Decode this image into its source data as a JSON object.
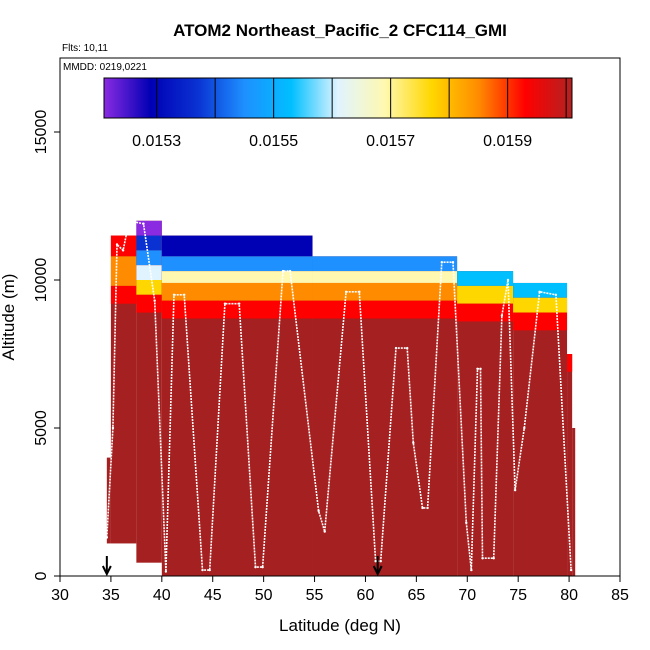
{
  "chart_data": {
    "type": "heatmap",
    "title": "ATOM2 Northeast_Pacific_2 CFC114_GMI",
    "flights_label": "Flts: 10,11",
    "mmdd_label": "MMDD: 0219,0221",
    "xlabel": "Latitude (deg N)",
    "ylabel": "Altitude (m)",
    "xlim": [
      30,
      85
    ],
    "ylim": [
      0,
      17500
    ],
    "x_ticks": [
      30,
      35,
      40,
      45,
      50,
      55,
      60,
      65,
      70,
      75,
      80,
      85
    ],
    "y_ticks": [
      0,
      5000,
      10000,
      15000
    ],
    "colorbar": {
      "range": [
        0.01521,
        0.01601
      ],
      "tick_values": [
        0.0153,
        0.0155,
        0.0157,
        0.0159
      ],
      "tick_labels": [
        "0.0153",
        "0.0155",
        "0.0157",
        "0.0159"
      ],
      "colors": [
        "#8a2be2",
        "#0000b4",
        "#0a32d2",
        "#1e90ff",
        "#00bfff",
        "#e0f4ff",
        "#fff8b0",
        "#ffd700",
        "#ff8c00",
        "#ff0000",
        "#b22222"
      ]
    },
    "columns": [
      {
        "x0": 34.6,
        "x1": 35.0,
        "base": 1100,
        "top": 4000,
        "layers": []
      },
      {
        "x0": 35.0,
        "x1": 37.5,
        "base": 1100,
        "top": 11500,
        "layers": [
          {
            "top": 11500,
            "color": "#ff0000"
          },
          {
            "top": 10800,
            "color": "#ff8c00"
          },
          {
            "top": 9800,
            "color": "#ff0000"
          }
        ]
      },
      {
        "x0": 37.5,
        "x1": 40.0,
        "base": 450,
        "top": 12000,
        "layers": [
          {
            "top": 12000,
            "color": "#8a2be2"
          },
          {
            "top": 11500,
            "color": "#0a32d2"
          },
          {
            "top": 11000,
            "color": "#1e90ff"
          },
          {
            "top": 10500,
            "color": "#e0f4ff"
          },
          {
            "top": 10000,
            "color": "#ffd700"
          },
          {
            "top": 9500,
            "color": "#ff0000"
          }
        ]
      },
      {
        "x0": 40.0,
        "x1": 54.8,
        "base": 0,
        "top": 11500,
        "layers": [
          {
            "top": 11500,
            "color": "#0000b4"
          },
          {
            "top": 10800,
            "color": "#1e90ff"
          },
          {
            "top": 10300,
            "color": "#fff8b0"
          },
          {
            "top": 9900,
            "color": "#ff8c00"
          },
          {
            "top": 9300,
            "color": "#ff0000"
          }
        ]
      },
      {
        "x0": 54.8,
        "x1": 69.0,
        "base": 0,
        "top": 10800,
        "layers": [
          {
            "top": 10800,
            "color": "#1e90ff"
          },
          {
            "top": 10300,
            "color": "#fff8b0"
          },
          {
            "top": 9900,
            "color": "#ff8c00"
          },
          {
            "top": 9300,
            "color": "#ff0000"
          }
        ]
      },
      {
        "x0": 69.0,
        "x1": 74.5,
        "base": 0,
        "top": 10300,
        "layers": [
          {
            "top": 10300,
            "color": "#00bfff"
          },
          {
            "top": 9800,
            "color": "#ffd700"
          },
          {
            "top": 9200,
            "color": "#ff0000"
          }
        ]
      },
      {
        "x0": 74.5,
        "x1": 79.8,
        "base": 0,
        "top": 9900,
        "layers": [
          {
            "top": 9900,
            "color": "#00bfff"
          },
          {
            "top": 9400,
            "color": "#ffd700"
          },
          {
            "top": 8900,
            "color": "#ff0000"
          }
        ]
      },
      {
        "x0": 79.8,
        "x1": 80.3,
        "base": 0,
        "top": 7500,
        "layers": [
          {
            "top": 7500,
            "color": "#ff0000"
          }
        ]
      },
      {
        "x0": 80.3,
        "x1": 80.6,
        "base": 0,
        "top": 5000,
        "layers": []
      }
    ],
    "background_color": "#a52020",
    "flight_track": [
      {
        "x": 34.6,
        "y": 1300
      },
      {
        "x": 35.2,
        "y": 5000
      },
      {
        "x": 35.6,
        "y": 11200
      },
      {
        "x": 36.2,
        "y": 11000
      },
      {
        "x": 36.8,
        "y": 12000
      },
      {
        "x": 38.2,
        "y": 11900
      },
      {
        "x": 39.3,
        "y": 9300
      },
      {
        "x": 40.4,
        "y": 150
      },
      {
        "x": 41.2,
        "y": 9500
      },
      {
        "x": 42.2,
        "y": 9500
      },
      {
        "x": 44.0,
        "y": 200
      },
      {
        "x": 44.7,
        "y": 200
      },
      {
        "x": 46.2,
        "y": 9200
      },
      {
        "x": 47.6,
        "y": 9200
      },
      {
        "x": 49.2,
        "y": 300
      },
      {
        "x": 49.9,
        "y": 300
      },
      {
        "x": 51.9,
        "y": 10300
      },
      {
        "x": 52.6,
        "y": 10300
      },
      {
        "x": 55.4,
        "y": 2200
      },
      {
        "x": 56.0,
        "y": 1500
      },
      {
        "x": 58.1,
        "y": 9600
      },
      {
        "x": 59.4,
        "y": 9600
      },
      {
        "x": 61.0,
        "y": 500
      },
      {
        "x": 61.5,
        "y": 500
      },
      {
        "x": 63.0,
        "y": 7700
      },
      {
        "x": 64.1,
        "y": 7700
      },
      {
        "x": 64.7,
        "y": 4500
      },
      {
        "x": 65.6,
        "y": 2300
      },
      {
        "x": 66.1,
        "y": 2300
      },
      {
        "x": 67.5,
        "y": 10600
      },
      {
        "x": 68.6,
        "y": 10600
      },
      {
        "x": 69.9,
        "y": 1800
      },
      {
        "x": 70.4,
        "y": 200
      },
      {
        "x": 71.0,
        "y": 7000
      },
      {
        "x": 71.3,
        "y": 7000
      },
      {
        "x": 71.5,
        "y": 600
      },
      {
        "x": 72.6,
        "y": 600
      },
      {
        "x": 73.4,
        "y": 8800
      },
      {
        "x": 74.0,
        "y": 10000
      },
      {
        "x": 74.7,
        "y": 2900
      },
      {
        "x": 75.6,
        "y": 5000
      },
      {
        "x": 77.1,
        "y": 9600
      },
      {
        "x": 78.7,
        "y": 9500
      },
      {
        "x": 80.2,
        "y": 200
      }
    ],
    "arrows_at_latitude": [
      34.6,
      61.2
    ]
  }
}
